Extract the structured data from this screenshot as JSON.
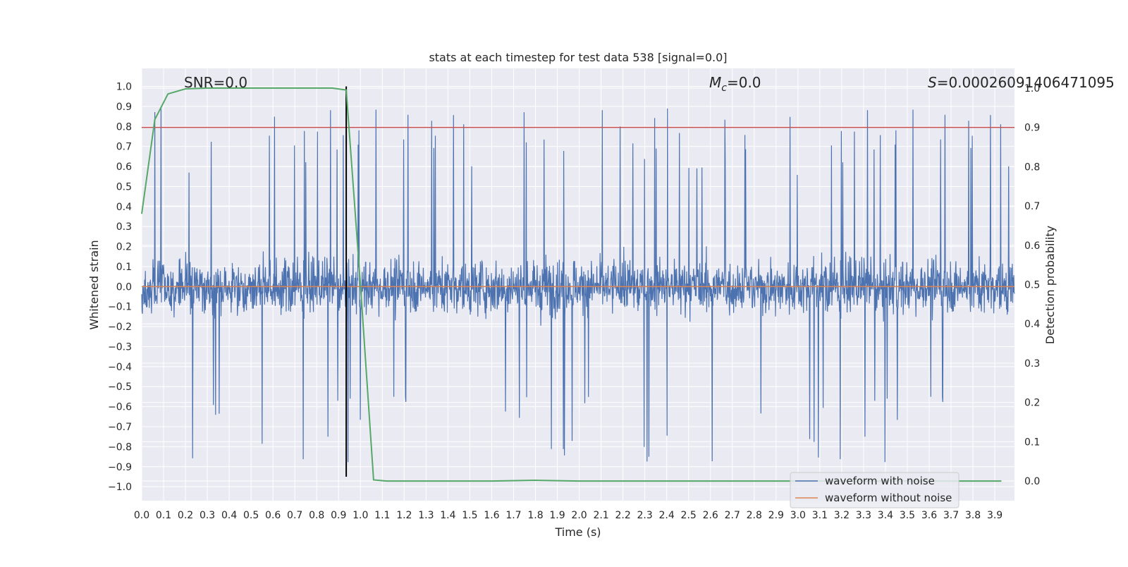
{
  "chart_data": {
    "type": "line",
    "title": "stats at each timestep for test data 538 [signal=0.0]",
    "xlabel": "Time (s)",
    "ylabel_left": "Whitened strain",
    "ylabel_right": "Detection probability",
    "xlim": [
      0.0,
      3.99
    ],
    "ylim_left": [
      -1.07,
      1.09
    ],
    "ylim_right": [
      -0.05,
      1.05
    ],
    "x_ticks": [
      "0.0",
      "0.1",
      "0.2",
      "0.3",
      "0.4",
      "0.5",
      "0.6",
      "0.7",
      "0.8",
      "0.9",
      "1.0",
      "1.1",
      "1.2",
      "1.3",
      "1.4",
      "1.5",
      "1.6",
      "1.7",
      "1.8",
      "1.9",
      "2.0",
      "2.1",
      "2.2",
      "2.3",
      "2.4",
      "2.5",
      "2.6",
      "2.7",
      "2.8",
      "2.9",
      "3.0",
      "3.1",
      "3.2",
      "3.3",
      "3.4",
      "3.5",
      "3.6",
      "3.7",
      "3.8",
      "3.9"
    ],
    "y_ticks_left": [
      "1.0",
      "0.9",
      "0.8",
      "0.7",
      "0.6",
      "0.5",
      "0.4",
      "0.3",
      "0.2",
      "0.1",
      "0.0",
      "−0.1",
      "−0.2",
      "−0.3",
      "−0.4",
      "−0.5",
      "−0.6",
      "−0.7",
      "−0.8",
      "−0.9",
      "−1.0"
    ],
    "y_ticks_right": [
      "1.0",
      "0.9",
      "0.8",
      "0.7",
      "0.6",
      "0.5",
      "0.4",
      "0.3",
      "0.2",
      "0.1",
      "0.0"
    ],
    "grid": true,
    "legend_position": "lower-right",
    "annotations": {
      "snr": "SNR=0.0",
      "mc_symbol": "M",
      "mc_sub": "c",
      "mc_value": "=0.0",
      "s_symbol": "S",
      "s_value": "=0.00026091406471095"
    },
    "series": [
      {
        "name": "waveform with noise",
        "axis": "left",
        "color": "#4c72b0",
        "style": "dense noise",
        "approx_envelope": [
          -0.95,
          1.0
        ]
      },
      {
        "name": "waveform without noise",
        "axis": "left",
        "color": "#dd8452",
        "x": [
          0.0,
          3.99
        ],
        "y": [
          0.0,
          0.0
        ]
      },
      {
        "axis": "right",
        "color": "#55a868",
        "x": [
          0.0,
          0.06,
          0.12,
          0.2,
          0.3,
          0.5,
          0.7,
          0.87,
          0.935,
          1.0,
          1.06,
          1.12,
          1.3,
          1.6,
          1.8,
          2.0,
          2.5,
          3.0,
          3.5,
          3.93
        ],
        "y": [
          0.68,
          0.92,
          0.985,
          0.998,
          1.0,
          1.0,
          1.0,
          1.0,
          0.995,
          0.5,
          0.003,
          0.0,
          0.0,
          0.0,
          0.002,
          0.0,
          0.0,
          0.0,
          0.0,
          0.0
        ]
      }
    ],
    "reference_lines": [
      {
        "orientation": "horizontal",
        "axis": "right",
        "value": 0.9,
        "color": "#c44e52"
      },
      {
        "orientation": "vertical",
        "value": 0.935,
        "from": -0.95,
        "to": 1.0,
        "color": "#000000"
      }
    ]
  }
}
